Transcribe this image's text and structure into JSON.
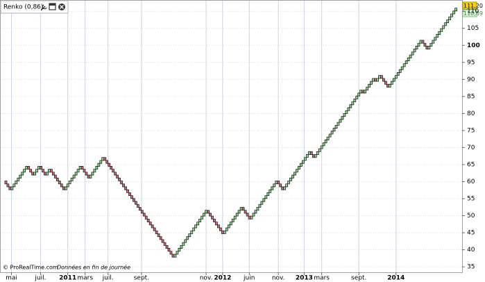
{
  "chart_data": {
    "type": "renko",
    "title": "Renko (0,86)",
    "footer": "© ProRealTime.com",
    "footer_note": "Données en fin de journée",
    "price_labels": [
      "111,20",
      "110,89"
    ],
    "x": [
      0,
      3,
      11,
      14,
      17,
      20,
      22,
      29,
      37,
      41,
      48,
      82,
      98,
      106,
      115,
      119,
      132,
      135,
      148,
      150,
      173,
      174,
      179,
      180,
      182,
      186,
      202,
      205,
      219
    ],
    "values": [
      60.2,
      57.62,
      64.5,
      61.92,
      64.5,
      61.92,
      63.64,
      57.62,
      64.5,
      61.06,
      67.08,
      37.84,
      51.6,
      44.72,
      52.46,
      49.02,
      60.2,
      57.62,
      68.8,
      67.08,
      86.86,
      86,
      90.3,
      89.44,
      91.16,
      87.72,
      101.48,
      98.9,
      110.94
    ],
    "up_color": "#8fdc8f",
    "down_color": "#d46a78",
    "xlim": [
      -1.5,
      222
    ],
    "xticks": [
      {
        "value": 3.7,
        "label": "mai"
      },
      {
        "value": 17.8,
        "label": "juil."
      },
      {
        "value": 31,
        "label": "2011"
      },
      {
        "value": 39.4,
        "label": "mars"
      },
      {
        "value": 50.5,
        "label": "juil."
      },
      {
        "value": 66.7,
        "label": "sept."
      },
      {
        "value": 98,
        "label": "nov."
      },
      {
        "value": 106,
        "label": "2012"
      },
      {
        "value": 118.9,
        "label": "juin"
      },
      {
        "value": 133,
        "label": "nov."
      },
      {
        "value": 145.5,
        "label": "2013"
      },
      {
        "value": 154,
        "label": "mars"
      },
      {
        "value": 172,
        "label": "sept."
      },
      {
        "value": 190,
        "label": "2014"
      }
    ],
    "ylim": [
      33.4,
      113.1
    ],
    "yticks": [
      35,
      40,
      45,
      50,
      55,
      60,
      65,
      70,
      75,
      80,
      85,
      90,
      95,
      100,
      105,
      110
    ],
    "grid": true
  }
}
